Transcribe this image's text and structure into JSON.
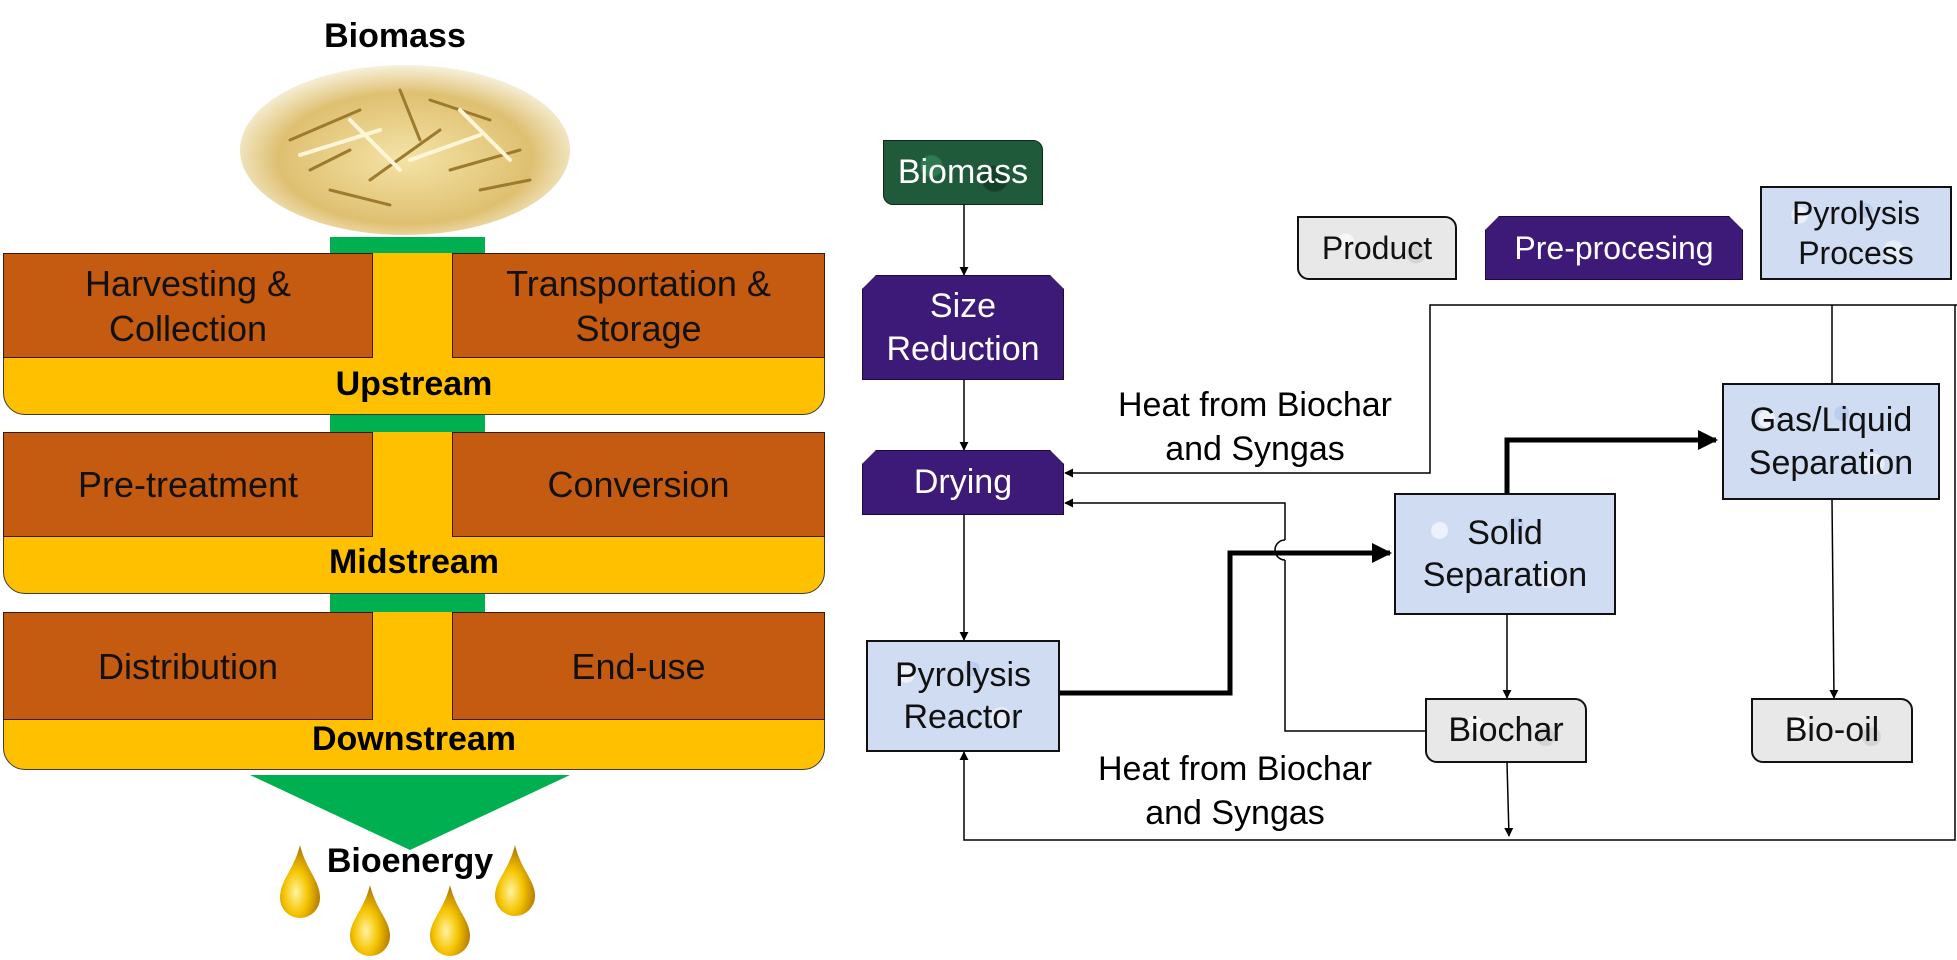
{
  "left": {
    "top_label": "Biomass",
    "upstream": {
      "left": "Harvesting & Collection",
      "right": "Transportation & Storage",
      "label": "Upstream"
    },
    "midstream": {
      "left": "Pre-treatment",
      "right": "Conversion",
      "label": "Midstream"
    },
    "downstream": {
      "left": "Distribution",
      "right": "End-use",
      "label": "Downstream"
    },
    "bottom_label": "Bioenergy"
  },
  "legend": {
    "product": "Product",
    "preprocessing": "Pre-procesing",
    "pyrolysis": "Pyrolysis Process"
  },
  "flow": {
    "biomass": "Biomass",
    "size_reduction": "Size Reduction",
    "drying": "Drying",
    "reactor": "Pyrolysis Reactor",
    "solid_separation": "Solid Separation",
    "gas_liquid": "Gas/Liquid Separation",
    "biochar": "Biochar",
    "biooil": "Bio-oil",
    "heat_top": "Heat from Biochar and Syngas",
    "heat_bottom": "Heat from Biochar and Syngas"
  },
  "colors": {
    "brown": "#c55a11",
    "yellow": "#ffc000",
    "green": "#00b050",
    "purple": "#3d1a78",
    "process_blue": "#cfdcf2",
    "biomass_green": "#1f5a3a"
  }
}
